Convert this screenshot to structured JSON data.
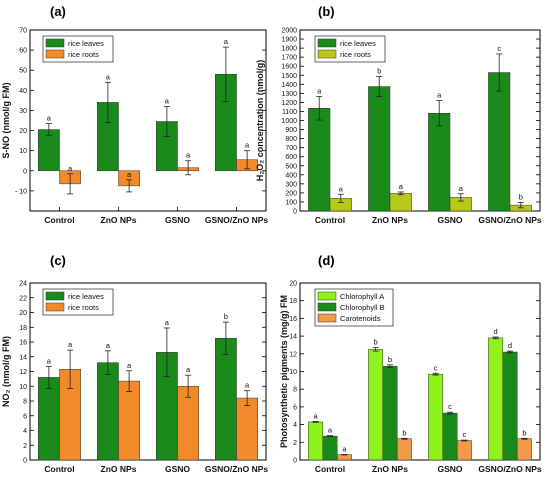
{
  "figure": {
    "colors": {
      "dark_green": "#1a8a1a",
      "olive": "#b8c81a",
      "orange": "#f28a2a",
      "light_green": "#8ff21a",
      "carotenoid": "#f09a4a"
    },
    "chart_data": [
      {
        "id": "a",
        "panel_letter": "(a)",
        "type": "bar",
        "ylabel": "S-NO (nmol/g FM)",
        "ylim": [
          -20,
          70
        ],
        "yticks": [
          -10,
          0,
          10,
          20,
          30,
          40,
          50,
          60,
          70
        ],
        "ytick_labels": [
          "- 10",
          "0",
          "10",
          "20",
          "30",
          "40",
          "50",
          "60",
          "70"
        ],
        "categories": [
          "Control",
          "ZnO NPs",
          "GSNO",
          "GSNO/ZnO NPs"
        ],
        "legend_position": "top-left",
        "series": [
          {
            "name": "rice leaves",
            "color": "#1a8a1a",
            "values": [
              20.5,
              34,
              24.5,
              48
            ],
            "errors": [
              3,
              10,
              7.5,
              13.5
            ],
            "labels": [
              "a",
              "a",
              "a",
              "a"
            ]
          },
          {
            "name": "rice roots",
            "color": "#f28a2a",
            "values": [
              -6.5,
              -7.5,
              1.5,
              5.5
            ],
            "errors": [
              5,
              3,
              3.5,
              4.5
            ],
            "labels": [
              "a",
              "a",
              "a",
              "a"
            ]
          }
        ]
      },
      {
        "id": "b",
        "panel_letter": "(b)",
        "type": "bar",
        "ylabel": "H₂O₂ concentration (nmol/g)",
        "ylim": [
          0,
          2000
        ],
        "yticks": [
          0,
          100,
          200,
          300,
          400,
          500,
          600,
          700,
          800,
          900,
          1000,
          1100,
          1200,
          1300,
          1400,
          1500,
          1600,
          1700,
          1800,
          1900,
          2000
        ],
        "ytick_labels": [
          "0",
          "100",
          "200",
          "300",
          "400",
          "500",
          "600",
          "700",
          "800",
          "900",
          "1000",
          "1100",
          "1200",
          "1300",
          "1400",
          "1500",
          "1600",
          "1700",
          "1800",
          "1900",
          "2000"
        ],
        "categories": [
          "Control",
          "ZnO NPs",
          "GSNO",
          "GSNO/ZnO NPs"
        ],
        "legend_position": "top-left",
        "series": [
          {
            "name": "rice leaves",
            "color": "#1a8a1a",
            "values": [
              1135,
              1375,
              1080,
              1530
            ],
            "errors": [
              130,
              110,
              140,
              205
            ],
            "labels": [
              "a",
              "b",
              "a",
              "c"
            ]
          },
          {
            "name": "rice roots",
            "color": "#b8c81a",
            "values": [
              140,
              195,
              150,
              65
            ],
            "errors": [
              45,
              15,
              40,
              30
            ],
            "labels": [
              "a",
              "a",
              "a",
              "b"
            ]
          }
        ]
      },
      {
        "id": "c",
        "panel_letter": "(c)",
        "type": "bar",
        "ylabel": "NO₂ (nmol/g FM)",
        "ylim": [
          0,
          24
        ],
        "yticks": [
          0,
          2,
          4,
          6,
          8,
          10,
          12,
          14,
          16,
          18,
          20,
          22,
          24
        ],
        "ytick_labels": [
          "0",
          "2",
          "4",
          "6",
          "8",
          "10",
          "12",
          "14",
          "16",
          "18",
          "20",
          "22",
          "24"
        ],
        "categories": [
          "Control",
          "ZnO NPs",
          "GSNO",
          "GSNO/ZnO NPs"
        ],
        "legend_position": "top-left",
        "series": [
          {
            "name": "rice leaves",
            "color": "#1a8a1a",
            "values": [
              11.2,
              13.2,
              14.6,
              16.5
            ],
            "errors": [
              1.5,
              1.6,
              3.3,
              2.2
            ],
            "labels": [
              "a",
              "a",
              "a",
              "b"
            ]
          },
          {
            "name": "rice roots",
            "color": "#f28a2a",
            "values": [
              12.3,
              10.7,
              10.0,
              8.4
            ],
            "errors": [
              2.6,
              1.4,
              1.5,
              1.0
            ],
            "labels": [
              "a",
              "a",
              "a",
              "a"
            ]
          }
        ]
      },
      {
        "id": "d",
        "panel_letter": "(d)",
        "type": "bar",
        "ylabel": "Photosynthetic pigments (mg/g) FM",
        "ylim": [
          0,
          20
        ],
        "yticks": [
          0,
          2,
          4,
          6,
          8,
          10,
          12,
          14,
          16,
          18,
          20
        ],
        "ytick_labels": [
          "0",
          "2",
          "4",
          "6",
          "8",
          "10",
          "12",
          "14",
          "16",
          "18",
          "20"
        ],
        "categories": [
          "Control",
          "ZnO NPs",
          "GSNO",
          "GSNO/ZnO NPs"
        ],
        "legend_position": "top-left",
        "series": [
          {
            "name": "Chlorophyll A",
            "color": "#8ff21a",
            "values": [
              4.3,
              12.5,
              9.7,
              13.8
            ],
            "errors": [
              0.05,
              0.2,
              0.1,
              0.1
            ],
            "labels": [
              "a",
              "b",
              "c",
              "d"
            ]
          },
          {
            "name": "Chlorophyll B",
            "color": "#1a8a1a",
            "values": [
              2.7,
              10.6,
              5.3,
              12.2
            ],
            "errors": [
              0.05,
              0.15,
              0.1,
              0.1
            ],
            "labels": [
              "a",
              "b",
              "c",
              "d"
            ]
          },
          {
            "name": "Carotenoids",
            "color": "#f09a4a",
            "values": [
              0.6,
              2.4,
              2.2,
              2.4
            ],
            "errors": [
              0.03,
              0.05,
              0.05,
              0.05
            ],
            "labels": [
              "a",
              "b",
              "c",
              "b"
            ]
          }
        ]
      }
    ]
  }
}
